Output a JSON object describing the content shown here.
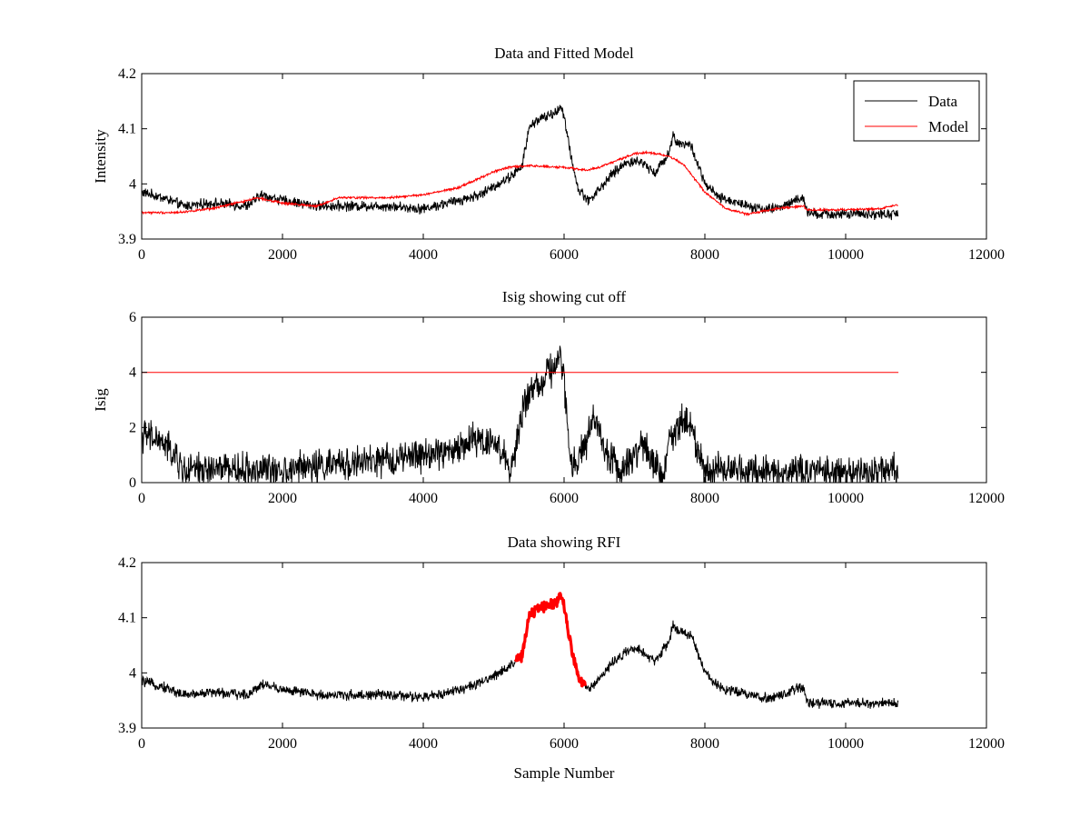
{
  "figure": {
    "background": "#ffffff"
  },
  "chart_data": [
    {
      "type": "line",
      "title": "Data and Fitted Model",
      "xlabel": "",
      "ylabel": "Intensity",
      "xlim": [
        0,
        12000
      ],
      "ylim": [
        3.9,
        4.2
      ],
      "xticks": [
        0,
        2000,
        4000,
        6000,
        8000,
        10000,
        12000
      ],
      "yticks": [
        3.9,
        4.0,
        4.1,
        4.2
      ],
      "xtick_labels": [
        "0",
        "2000",
        "4000",
        "6000",
        "8000",
        "10000",
        "12000"
      ],
      "ytick_labels": [
        "3.9",
        "4",
        "4.1",
        "4.2"
      ],
      "grid": false,
      "legend": {
        "position": "top-right",
        "entries": [
          {
            "label": "Data",
            "color": "#000000"
          },
          {
            "label": "Model",
            "color": "#ff0000"
          }
        ]
      },
      "series": [
        {
          "name": "Data",
          "color": "#000000",
          "noise": 0.007,
          "x": [
            0,
            300,
            600,
            1000,
            1500,
            1650,
            1700,
            2000,
            2500,
            3000,
            3500,
            4000,
            4500,
            4800,
            5000,
            5200,
            5400,
            5500,
            5600,
            5700,
            5800,
            5900,
            5950,
            6000,
            6100,
            6200,
            6350,
            6500,
            6700,
            6900,
            7100,
            7300,
            7500,
            7550,
            7600,
            7800,
            8000,
            8200,
            8500,
            8800,
            9000,
            9300,
            9400,
            9450,
            9500,
            9700,
            10000,
            10300,
            10750
          ],
          "y": [
            3.985,
            3.975,
            3.96,
            3.965,
            3.96,
            3.975,
            3.98,
            3.97,
            3.96,
            3.96,
            3.96,
            3.955,
            3.97,
            3.98,
            3.995,
            4.01,
            4.03,
            4.1,
            4.115,
            4.12,
            4.125,
            4.13,
            4.145,
            4.12,
            4.05,
            3.99,
            3.97,
            3.99,
            4.02,
            4.04,
            4.04,
            4.02,
            4.06,
            4.09,
            4.075,
            4.07,
            4.0,
            3.975,
            3.965,
            3.955,
            3.955,
            3.97,
            3.975,
            3.95,
            3.945,
            3.945,
            3.945,
            3.945,
            3.945
          ]
        },
        {
          "name": "Model",
          "color": "#ff0000",
          "noise": 0.0015,
          "x": [
            0,
            500,
            1000,
            1500,
            1650,
            2000,
            2500,
            2800,
            3500,
            4000,
            4500,
            5000,
            5200,
            5500,
            6000,
            6300,
            6500,
            6800,
            7000,
            7200,
            7500,
            7700,
            8000,
            8300,
            8600,
            9000,
            9400,
            9450,
            10000,
            10500,
            10750
          ],
          "y": [
            3.948,
            3.948,
            3.955,
            3.97,
            3.975,
            3.965,
            3.96,
            3.975,
            3.975,
            3.98,
            3.993,
            4.022,
            4.03,
            4.033,
            4.03,
            4.025,
            4.03,
            4.045,
            4.055,
            4.057,
            4.05,
            4.035,
            3.985,
            3.955,
            3.945,
            3.955,
            3.96,
            3.953,
            3.953,
            3.955,
            3.962
          ]
        }
      ]
    },
    {
      "type": "line",
      "title": "Isig showing cut off",
      "xlabel": "",
      "ylabel": "Isig",
      "xlim": [
        0,
        12000
      ],
      "ylim": [
        0,
        6
      ],
      "xticks": [
        0,
        2000,
        4000,
        6000,
        8000,
        10000,
        12000
      ],
      "yticks": [
        0,
        2,
        4,
        6
      ],
      "xtick_labels": [
        "0",
        "2000",
        "4000",
        "6000",
        "8000",
        "10000",
        "12000"
      ],
      "ytick_labels": [
        "0",
        "2",
        "4",
        "6"
      ],
      "grid": false,
      "series": [
        {
          "name": "",
          "color": "#000000",
          "noise": 0.45,
          "floor": 0,
          "x": [
            0,
            200,
            400,
            600,
            1000,
            1500,
            2000,
            2500,
            3000,
            3500,
            4000,
            4500,
            4700,
            5000,
            5150,
            5250,
            5400,
            5500,
            5600,
            5700,
            5800,
            5900,
            5950,
            6000,
            6100,
            6300,
            6400,
            6600,
            6800,
            6900,
            7100,
            7300,
            7400,
            7500,
            7700,
            7800,
            8000,
            8500,
            9000,
            9500,
            10000,
            10500,
            10750
          ],
          "y": [
            1.7,
            1.6,
            1.2,
            0.4,
            0.5,
            0.45,
            0.5,
            0.6,
            0.7,
            0.8,
            1.0,
            1.2,
            1.6,
            1.5,
            1.0,
            0.3,
            2.5,
            3.3,
            3.5,
            3.8,
            4.0,
            4.4,
            4.8,
            3.5,
            0.5,
            1.3,
            2.4,
            1.2,
            0.3,
            0.8,
            1.4,
            0.6,
            0.2,
            1.6,
            2.3,
            2.0,
            0.5,
            0.5,
            0.45,
            0.4,
            0.4,
            0.45,
            0.55
          ]
        },
        {
          "name": "",
          "color": "#ff0000",
          "noise": 0,
          "x": [
            0,
            10750
          ],
          "y": [
            4,
            4
          ]
        }
      ]
    },
    {
      "type": "line",
      "title": "Data showing RFI",
      "xlabel": "Sample Number",
      "ylabel": "",
      "xlim": [
        0,
        12000
      ],
      "ylim": [
        3.9,
        4.2
      ],
      "xticks": [
        0,
        2000,
        4000,
        6000,
        8000,
        10000,
        12000
      ],
      "yticks": [
        3.9,
        4.0,
        4.1,
        4.2
      ],
      "xtick_labels": [
        "0",
        "2000",
        "4000",
        "6000",
        "8000",
        "10000",
        "12000"
      ],
      "ytick_labels": [
        "3.9",
        "4",
        "4.1",
        "4.2"
      ],
      "grid": false,
      "rfi_highlight": {
        "x_range": [
          5300,
          6300
        ],
        "color": "#ff0000"
      },
      "series": [
        {
          "name": "",
          "color": "#000000",
          "noise": 0.007,
          "x": [
            0,
            300,
            600,
            1000,
            1500,
            1650,
            1700,
            2000,
            2500,
            3000,
            3500,
            4000,
            4500,
            4800,
            5000,
            5200,
            5400,
            5500,
            5600,
            5700,
            5800,
            5900,
            5950,
            6000,
            6100,
            6200,
            6350,
            6500,
            6700,
            6900,
            7100,
            7300,
            7500,
            7550,
            7600,
            7800,
            8000,
            8200,
            8500,
            8800,
            9000,
            9300,
            9400,
            9450,
            9500,
            9700,
            10000,
            10300,
            10750
          ],
          "y": [
            3.985,
            3.975,
            3.96,
            3.965,
            3.96,
            3.975,
            3.98,
            3.97,
            3.96,
            3.96,
            3.96,
            3.955,
            3.97,
            3.98,
            3.995,
            4.01,
            4.03,
            4.1,
            4.115,
            4.12,
            4.125,
            4.13,
            4.145,
            4.12,
            4.05,
            3.99,
            3.97,
            3.99,
            4.02,
            4.04,
            4.04,
            4.02,
            4.06,
            4.09,
            4.075,
            4.07,
            4.0,
            3.975,
            3.965,
            3.955,
            3.955,
            3.97,
            3.975,
            3.95,
            3.945,
            3.945,
            3.945,
            3.945,
            3.945
          ]
        }
      ]
    }
  ]
}
